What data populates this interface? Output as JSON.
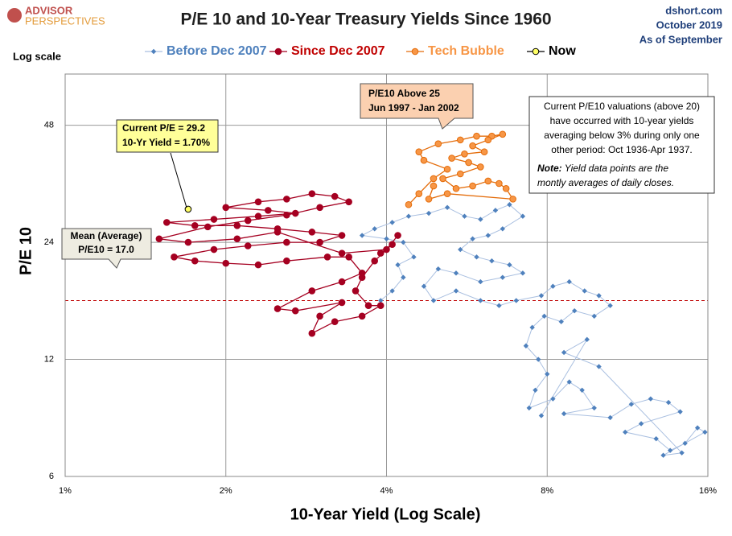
{
  "chart_data": {
    "type": "scatter",
    "title": "P/E 10 and 10-Year Treasury Yields Since 1960",
    "logo": [
      "ADVISOR",
      "PERSPECTIVES"
    ],
    "source": "dshort.com",
    "date": "October 2019",
    "as_of": "As of September",
    "scale_note": "Log scale",
    "x_label": "10-Year Yield (Log Scale)",
    "y_label": "P/E 10",
    "log_x": true,
    "log_y": true,
    "grid": true,
    "legend": "top",
    "xlim": [
      1,
      16
    ],
    "ylim": [
      6,
      65
    ],
    "xticks": [
      {
        "value": 1,
        "label": "1%"
      },
      {
        "value": 2,
        "label": "2%"
      },
      {
        "value": 4,
        "label": "4%"
      },
      {
        "value": 8,
        "label": "8%"
      },
      {
        "value": 16,
        "label": "16%"
      }
    ],
    "yticks": [
      6,
      12,
      24,
      48
    ],
    "mean": {
      "value": 17,
      "color": "#c00000",
      "label": [
        "Mean (Average)",
        "P/E10 = 17.0"
      ]
    },
    "current_box": [
      "Current P/E = 29.2",
      "10-Yr Yield = 1.70%"
    ],
    "tech_box": [
      "P/E10 Above 25",
      "Jun 1997  - Jan 2002"
    ],
    "note_box": [
      "Current P/E10 valuations  (above 20)",
      "have occurred with 10-year yields",
      "averaging below 3% during only one",
      "other period: Oct 1936-Apr 1937."
    ],
    "note_tail": [
      "Note:",
      " Yield data points are the",
      "montly averages of daily closes."
    ],
    "series": [
      {
        "name": "Before Dec 2007",
        "marker": "diamond",
        "color": "#4f81bd",
        "line_color": "#a9bfe0",
        "text_color": "#4f81bd",
        "x": [
          3.9,
          4.1,
          4.3,
          4.2,
          4.5,
          4.3,
          4.0,
          3.6,
          3.8,
          4.1,
          4.4,
          4.8,
          5.2,
          5.6,
          6.0,
          6.4,
          6.8,
          7.2,
          6.6,
          6.2,
          5.8,
          5.5,
          5.9,
          6.3,
          6.8,
          7.2,
          6.6,
          6.0,
          5.4,
          5.0,
          4.7,
          4.9,
          5.4,
          6.0,
          6.5,
          7.0,
          7.8,
          8.2,
          8.8,
          9.4,
          10.0,
          10.5,
          9.8,
          9.0,
          8.5,
          7.9,
          7.5,
          7.3,
          7.7,
          8.0,
          7.6,
          7.4,
          8.2,
          8.8,
          9.3,
          9.8,
          8.6,
          10.5,
          11.5,
          12.5,
          13.5,
          14.2,
          12.0,
          11.2,
          12.8,
          13.6,
          14.5,
          15.3,
          15.8,
          13.2,
          14.3,
          10.0,
          8.6,
          9.5,
          7.8
        ],
        "y": [
          17,
          18,
          19.5,
          21,
          22,
          24,
          24.5,
          25,
          26,
          27,
          28,
          28.5,
          29.5,
          28,
          27.5,
          29,
          30,
          28,
          26,
          25,
          24.5,
          23,
          22,
          21.5,
          21,
          20,
          19.5,
          19,
          20,
          20.5,
          18.5,
          17,
          18,
          17,
          16.5,
          17,
          17.5,
          18.5,
          19,
          18,
          17.5,
          16.5,
          15.5,
          16,
          15,
          15.5,
          14.5,
          13,
          12,
          11,
          10,
          9,
          9.5,
          10.5,
          10,
          9,
          8.7,
          8.5,
          9.2,
          9.5,
          9.3,
          8.8,
          8.2,
          7.8,
          7.5,
          7.0,
          7.3,
          8.0,
          7.8,
          6.8,
          6.9,
          11.5,
          12.5,
          13.5,
          8.6
        ]
      },
      {
        "name": "Since Dec 2007",
        "marker": "circle",
        "color": "#a50021",
        "line_color": "#a50021",
        "text_color": "#c00000",
        "x": [
          3.9,
          4.1,
          3.8,
          3.6,
          3.5,
          3.7,
          3.9,
          3.6,
          3.2,
          2.9,
          3.0,
          3.3,
          2.7,
          2.5,
          2.9,
          3.3,
          3.6,
          3.4,
          3.1,
          2.6,
          2.3,
          2.0,
          1.75,
          1.6,
          1.9,
          2.2,
          2.6,
          3.0,
          3.3,
          2.9,
          2.5,
          2.1,
          1.75,
          1.55,
          1.9,
          2.3,
          2.7,
          2.4,
          2.0,
          2.3,
          2.6,
          2.9,
          3.2,
          3.4,
          3.0,
          2.6,
          2.2,
          1.85,
          1.5,
          1.7,
          2.1,
          2.5,
          3.3,
          4.0,
          4.2
        ],
        "y": [
          22.5,
          23.7,
          21.5,
          19.5,
          18,
          16.5,
          16.5,
          15.5,
          15,
          14,
          15.5,
          16.8,
          16,
          16.2,
          18,
          19,
          20,
          22,
          22,
          21.5,
          21,
          21.2,
          21.5,
          22,
          23,
          23.5,
          24,
          24,
          25,
          25.5,
          26,
          26.5,
          26.5,
          27,
          27.5,
          28,
          28.5,
          29,
          29.5,
          30.5,
          31,
          32,
          31.5,
          30.5,
          29.5,
          28.2,
          27.3,
          26.3,
          24.5,
          24,
          24.5,
          25.5,
          22.5,
          23,
          25
        ]
      },
      {
        "name": "Tech Bubble",
        "marker": "circle",
        "color": "#f79646",
        "line_color": "#e46c0a",
        "text_color": "#f79646",
        "x": [
          4.4,
          4.6,
          4.9,
          5.2,
          4.7,
          4.6,
          5.0,
          5.5,
          5.9,
          6.3,
          6.6,
          6.2,
          5.8,
          6.1,
          5.6,
          5.3,
          5.7,
          6.0,
          5.5,
          5.1,
          5.4,
          5.8,
          6.2,
          6.5,
          6.7,
          6.9,
          5.2,
          4.8,
          4.9
        ],
        "y": [
          30,
          32,
          35,
          37,
          39,
          41,
          43,
          44,
          45,
          45,
          45.5,
          44,
          42.5,
          41,
          40.5,
          39.5,
          38.5,
          37.5,
          36,
          35,
          33,
          33.5,
          34.5,
          34,
          33,
          31,
          32,
          31,
          33.5
        ]
      },
      {
        "name": "Now",
        "marker": "circle",
        "color": "#ffff66",
        "line_color": "#000000",
        "text_color": "#000000",
        "x": [
          1.7
        ],
        "y": [
          29.2
        ]
      }
    ]
  }
}
